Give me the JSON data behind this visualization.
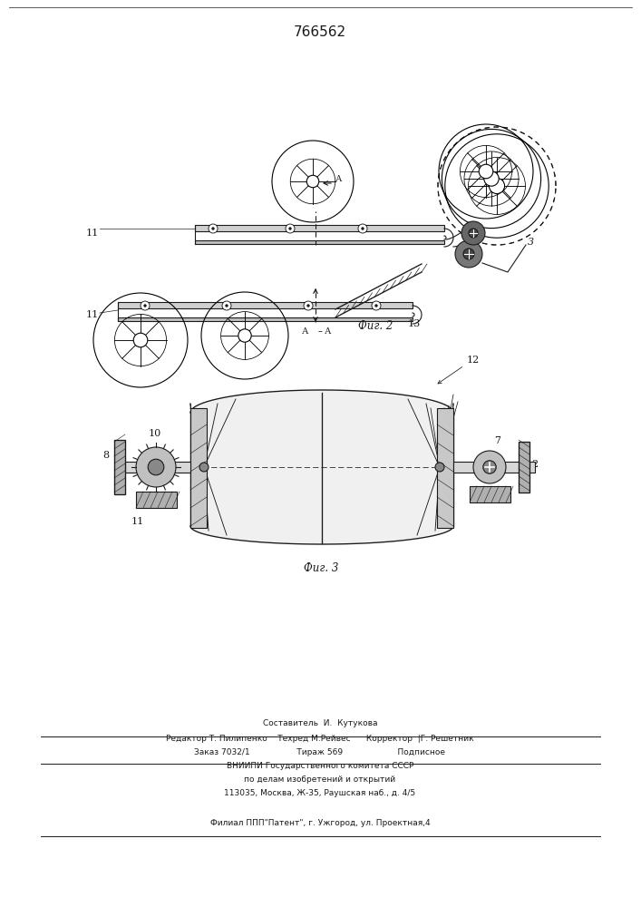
{
  "patent_number": "766562",
  "background_color": "#ffffff",
  "line_color": "#1a1a1a",
  "fig_width": 7.07,
  "fig_height": 10.0,
  "dpi": 100,
  "bottom_text": {
    "line1": "Составитель  И.  Кутукова",
    "line2": "Редактор Т. Пилипенко    Техред М.Рейвес      Корректор  |Г. Решетник",
    "line3": "Заказ 7032/1                  Тираж 569                     Подписное",
    "line4": "ВНИИПИ Государственного комитета СССР",
    "line5": "по делам изобретений и открытий",
    "line6": "113035, Москва, Ж-35, Раушская наб., д. 4/5",
    "line7": "Филиал ППП\"Патент\", г. Ужгород, ул. Проектная,4"
  }
}
